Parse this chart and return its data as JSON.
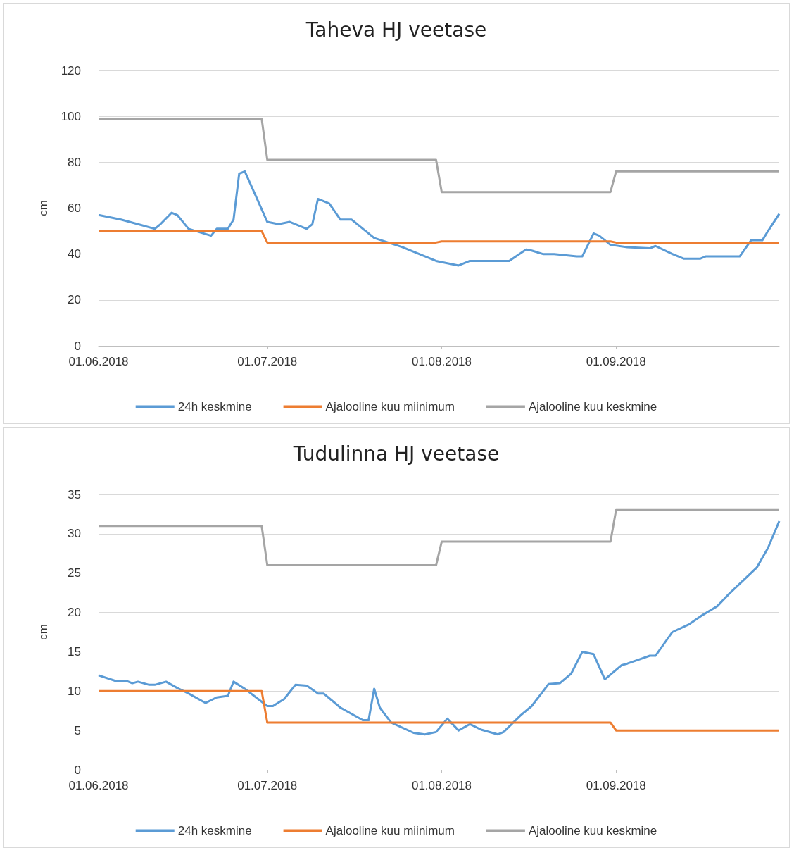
{
  "chart_data": [
    {
      "type": "line",
      "title": "Taheva HJ veetase",
      "ylabel": "cm",
      "xlim": [
        "2018-06-01",
        "2018-09-30"
      ],
      "xticks": [
        {
          "value": "2018-06-01",
          "label": "01.06.2018"
        },
        {
          "value": "2018-07-01",
          "label": "01.07.2018"
        },
        {
          "value": "2018-08-01",
          "label": "01.08.2018"
        },
        {
          "value": "2018-09-01",
          "label": "01.09.2018"
        }
      ],
      "ylim": [
        0,
        120
      ],
      "yticks": [
        0,
        20,
        40,
        60,
        80,
        100,
        120
      ],
      "grid": "y",
      "legend": "bottom",
      "marker": "none",
      "line_style": "solid",
      "series": [
        {
          "name": "24h keskmine",
          "color": "#5b9bd5",
          "x": [
            "2018-06-01",
            "2018-06-05",
            "2018-06-08",
            "2018-06-11",
            "2018-06-12",
            "2018-06-14",
            "2018-06-15",
            "2018-06-17",
            "2018-06-21",
            "2018-06-22",
            "2018-06-24",
            "2018-06-25",
            "2018-06-26",
            "2018-06-27",
            "2018-06-29",
            "2018-07-01",
            "2018-07-03",
            "2018-07-05",
            "2018-07-08",
            "2018-07-09",
            "2018-07-10",
            "2018-07-12",
            "2018-07-14",
            "2018-07-16",
            "2018-07-18",
            "2018-07-20",
            "2018-07-25",
            "2018-07-29",
            "2018-07-31",
            "2018-08-02",
            "2018-08-04",
            "2018-08-06",
            "2018-08-09",
            "2018-08-13",
            "2018-08-16",
            "2018-08-17",
            "2018-08-19",
            "2018-08-21",
            "2018-08-25",
            "2018-08-26",
            "2018-08-28",
            "2018-08-29",
            "2018-08-31",
            "2018-09-03",
            "2018-09-07",
            "2018-09-08",
            "2018-09-11",
            "2018-09-13",
            "2018-09-16",
            "2018-09-17",
            "2018-09-21",
            "2018-09-23",
            "2018-09-25",
            "2018-09-27",
            "2018-09-28",
            "2018-09-30"
          ],
          "values": [
            57,
            55,
            53,
            51,
            53,
            58,
            57,
            51,
            48,
            51,
            51,
            55,
            75,
            76,
            65,
            54,
            53,
            54,
            51,
            53,
            64,
            62,
            55,
            55,
            51,
            47,
            43,
            39,
            37,
            36,
            35,
            37,
            37,
            37,
            42,
            41.5,
            40,
            40,
            39,
            39,
            49,
            48,
            44,
            43,
            42.5,
            43.5,
            40,
            38,
            38,
            39,
            39,
            39,
            46,
            46,
            50,
            57.5
          ]
        },
        {
          "name": "Ajalooline kuu miinimum",
          "color": "#ed7d31",
          "x": [
            "2018-06-01",
            "2018-06-30",
            "2018-07-01",
            "2018-07-31",
            "2018-08-01",
            "2018-08-31",
            "2018-09-01",
            "2018-09-30"
          ],
          "values": [
            50,
            50,
            45,
            45,
            45.5,
            45.5,
            45,
            45
          ]
        },
        {
          "name": "Ajalooline kuu keskmine",
          "color": "#a5a5a5",
          "x": [
            "2018-06-01",
            "2018-06-30",
            "2018-07-01",
            "2018-07-31",
            "2018-08-01",
            "2018-08-31",
            "2018-09-01",
            "2018-09-30"
          ],
          "values": [
            99,
            99,
            81,
            81,
            67,
            67,
            76,
            76
          ]
        }
      ]
    },
    {
      "type": "line",
      "title": "Tudulinna HJ veetase",
      "ylabel": "cm",
      "xlim": [
        "2018-06-01",
        "2018-09-30"
      ],
      "xticks": [
        {
          "value": "2018-06-01",
          "label": "01.06.2018"
        },
        {
          "value": "2018-07-01",
          "label": "01.07.2018"
        },
        {
          "value": "2018-08-01",
          "label": "01.08.2018"
        },
        {
          "value": "2018-09-01",
          "label": "01.09.2018"
        }
      ],
      "ylim": [
        0,
        35
      ],
      "yticks": [
        0,
        5,
        10,
        15,
        20,
        25,
        30,
        35
      ],
      "grid": "y",
      "legend": "bottom",
      "marker": "none",
      "line_style": "solid",
      "series": [
        {
          "name": "24h keskmine",
          "color": "#5b9bd5",
          "x": [
            "2018-06-01",
            "2018-06-04",
            "2018-06-06",
            "2018-06-07",
            "2018-06-08",
            "2018-06-10",
            "2018-06-11",
            "2018-06-13",
            "2018-06-15",
            "2018-06-17",
            "2018-06-20",
            "2018-06-22",
            "2018-06-24",
            "2018-06-25",
            "2018-06-27",
            "2018-06-29",
            "2018-07-01",
            "2018-07-02",
            "2018-07-04",
            "2018-07-06",
            "2018-07-08",
            "2018-07-10",
            "2018-07-11",
            "2018-07-14",
            "2018-07-18",
            "2018-07-19",
            "2018-07-20",
            "2018-07-21",
            "2018-07-23",
            "2018-07-27",
            "2018-07-29",
            "2018-07-31",
            "2018-08-02",
            "2018-08-04",
            "2018-08-06",
            "2018-08-08",
            "2018-08-11",
            "2018-08-12",
            "2018-08-15",
            "2018-08-17",
            "2018-08-20",
            "2018-08-22",
            "2018-08-24",
            "2018-08-26",
            "2018-08-28",
            "2018-08-30",
            "2018-09-02",
            "2018-09-03",
            "2018-09-05",
            "2018-09-07",
            "2018-09-08",
            "2018-09-11",
            "2018-09-14",
            "2018-09-16",
            "2018-09-19",
            "2018-09-21",
            "2018-09-26",
            "2018-09-28",
            "2018-09-30"
          ],
          "values": [
            12,
            11.3,
            11.3,
            11,
            11.2,
            10.8,
            10.8,
            11.2,
            10.4,
            9.7,
            8.5,
            9.2,
            9.4,
            11.2,
            10.3,
            9.2,
            8.1,
            8.1,
            9,
            10.8,
            10.7,
            9.7,
            9.7,
            7.9,
            6.3,
            6.3,
            10.3,
            7.9,
            6,
            4.7,
            4.5,
            4.8,
            6.5,
            5,
            5.8,
            5.1,
            4.5,
            4.8,
            6.9,
            8.1,
            10.9,
            11,
            12.2,
            15,
            14.7,
            11.5,
            13.3,
            13.5,
            14,
            14.5,
            14.5,
            17.5,
            18.5,
            19.5,
            20.8,
            22.3,
            25.7,
            28.2,
            31.6
          ]
        },
        {
          "name": "Ajalooline kuu miinimum",
          "color": "#ed7d31",
          "x": [
            "2018-06-01",
            "2018-06-30",
            "2018-07-01",
            "2018-07-31",
            "2018-08-01",
            "2018-08-31",
            "2018-09-01",
            "2018-09-30"
          ],
          "values": [
            10,
            10,
            6,
            6,
            6,
            6,
            5,
            5
          ]
        },
        {
          "name": "Ajalooline kuu keskmine",
          "color": "#a5a5a5",
          "x": [
            "2018-06-01",
            "2018-06-30",
            "2018-07-01",
            "2018-07-31",
            "2018-08-01",
            "2018-08-31",
            "2018-09-01",
            "2018-09-30"
          ],
          "values": [
            31,
            31,
            26,
            26,
            29,
            29,
            33,
            33
          ]
        }
      ]
    }
  ]
}
